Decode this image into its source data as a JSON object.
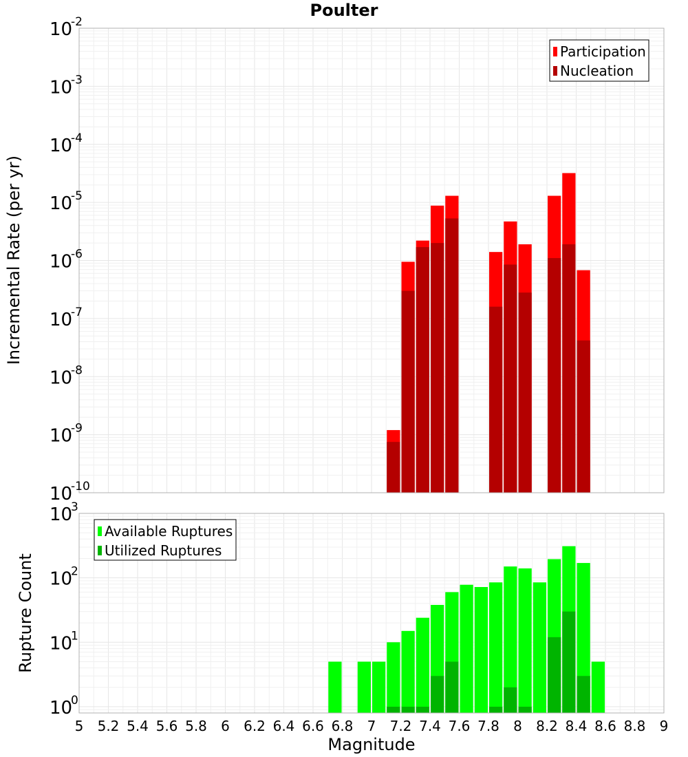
{
  "chart_data": [
    {
      "type": "bar",
      "title": "Poulter",
      "xlabel": "",
      "ylabel": "Incremental Rate (per yr)",
      "yscale": "log",
      "xlim": [
        5,
        9
      ],
      "ylim": [
        1e-10,
        0.01
      ],
      "grid": true,
      "legend_position": "top-right",
      "bin_width": 0.1,
      "x": [
        7.15,
        7.25,
        7.35,
        7.45,
        7.55,
        7.85,
        7.95,
        8.05,
        8.25,
        8.35,
        8.45
      ],
      "series": [
        {
          "name": "Participation",
          "color": "#ff0000",
          "values": [
            1.2e-09,
            9.5e-07,
            2.2e-06,
            8.8e-06,
            1.3e-05,
            1.4e-06,
            4.7e-06,
            1.9e-06,
            1.3e-05,
            3.2e-05,
            6.8e-07
          ]
        },
        {
          "name": "Nucleation",
          "color": "#b40000",
          "values": [
            7.5e-10,
            3e-07,
            1.7e-06,
            2e-06,
            5.3e-06,
            1.6e-07,
            8.5e-07,
            2.8e-07,
            1.1e-06,
            1.9e-06,
            4.2e-08
          ]
        }
      ]
    },
    {
      "type": "bar",
      "title": "",
      "xlabel": "Magnitude",
      "ylabel": "Rupture Count",
      "yscale": "log",
      "xlim": [
        5,
        9
      ],
      "ylim": [
        0.8,
        1000
      ],
      "grid": true,
      "legend_position": "top-left",
      "bin_width": 0.1,
      "x": [
        6.75,
        6.95,
        7.05,
        7.15,
        7.25,
        7.35,
        7.45,
        7.55,
        7.65,
        7.75,
        7.85,
        7.95,
        8.05,
        8.15,
        8.25,
        8.35,
        8.45,
        8.55
      ],
      "series": [
        {
          "name": "Available Ruptures",
          "color": "#00ff00",
          "values": [
            5,
            5,
            5,
            10,
            15,
            24,
            38,
            60,
            78,
            72,
            85,
            150,
            140,
            85,
            195,
            310,
            170,
            5
          ]
        },
        {
          "name": "Utilized Ruptures",
          "color": "#00b400",
          "values": [
            0,
            0,
            0,
            1,
            1,
            1,
            3,
            5,
            0,
            0,
            1,
            2,
            1,
            0,
            12,
            30,
            3,
            0
          ]
        }
      ],
      "x_ticks": [
        "5",
        "5.2",
        "5.4",
        "5.6",
        "5.8",
        "6",
        "6.2",
        "6.4",
        "6.6",
        "6.8",
        "7",
        "7.2",
        "7.4",
        "7.6",
        "7.8",
        "8",
        "8.2",
        "8.4",
        "8.6",
        "8.8",
        "9"
      ]
    }
  ]
}
